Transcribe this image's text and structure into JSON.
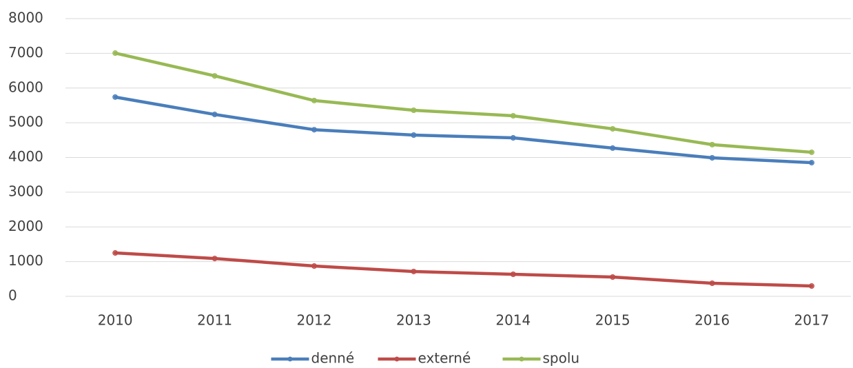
{
  "chart_data": {
    "type": "line",
    "categories": [
      "2010",
      "2011",
      "2012",
      "2013",
      "2014",
      "2015",
      "2016",
      "2017"
    ],
    "series": [
      {
        "name": "denné",
        "color": "#4a7ebb",
        "values": [
          5740,
          5240,
          4800,
          4645,
          4565,
          4270,
          3990,
          3850
        ]
      },
      {
        "name": "externé",
        "color": "#be4b48",
        "values": [
          1250,
          1090,
          873,
          715,
          635,
          556,
          377,
          298
        ]
      },
      {
        "name": "spolu",
        "color": "#98b954",
        "values": [
          7007,
          6350,
          5640,
          5360,
          5200,
          4825,
          4370,
          4150
        ]
      }
    ],
    "ylim": [
      0,
      8000
    ],
    "yticks": [
      0,
      1000,
      2000,
      3000,
      4000,
      5000,
      6000,
      7000,
      8000
    ],
    "grid": true,
    "legend": "bottom"
  }
}
